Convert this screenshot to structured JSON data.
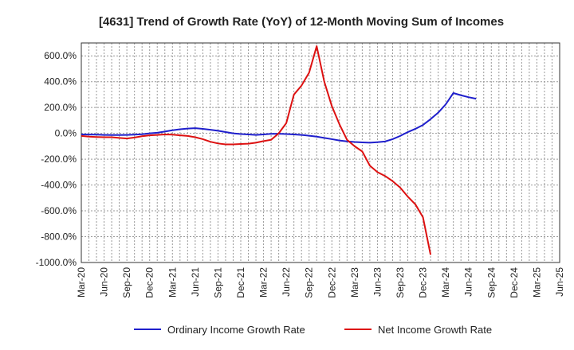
{
  "chart_data": {
    "type": "line",
    "title": "[4631]  Trend of Growth Rate (YoY) of 12-Month Moving Sum of Incomes",
    "xlabel": "",
    "ylabel": "",
    "ylim": [
      -1000,
      700
    ],
    "y_ticks": [
      600,
      400,
      200,
      0,
      -200,
      -400,
      -600,
      -800,
      -1000
    ],
    "y_tick_labels": [
      "600.0%",
      "400.0%",
      "200.0%",
      "0.0%",
      "-200.0%",
      "-400.0%",
      "-600.0%",
      "-800.0%",
      "-1000.0%"
    ],
    "x_tick_labels": [
      "Mar-20",
      "Jun-20",
      "Sep-20",
      "Dec-20",
      "Mar-21",
      "Jun-21",
      "Sep-21",
      "Dec-21",
      "Mar-22",
      "Jun-22",
      "Sep-22",
      "Dec-22",
      "Mar-23",
      "Jun-23",
      "Sep-23",
      "Dec-23",
      "Mar-24",
      "Jun-24",
      "Sep-24",
      "Dec-24",
      "Mar-25",
      "Jun-25"
    ],
    "grid": true,
    "legend_position": "bottom",
    "series": [
      {
        "name": "Ordinary Income Growth Rate",
        "color": "#1f1fcc",
        "values": [
          -8,
          -9,
          -10,
          -12,
          -13,
          -13,
          -12,
          -10,
          -7,
          0,
          5,
          14,
          24,
          32,
          37,
          40,
          35,
          28,
          20,
          10,
          0,
          -5,
          -8,
          -12,
          -8,
          -4,
          -3,
          -5,
          -8,
          -12,
          -18,
          -25,
          -35,
          -45,
          -55,
          -62,
          -67,
          -70,
          -72,
          -68,
          -63,
          -45,
          -20,
          10,
          35,
          65,
          110,
          160,
          225,
          312,
          295,
          280,
          268
        ]
      },
      {
        "name": "Net Income Growth Rate",
        "color": "#dd1111",
        "values": [
          -20,
          -25,
          -28,
          -30,
          -30,
          -35,
          -40,
          -32,
          -22,
          -15,
          -12,
          -8,
          -10,
          -15,
          -20,
          -30,
          -45,
          -65,
          -78,
          -85,
          -85,
          -82,
          -80,
          -72,
          -60,
          -50,
          0,
          80,
          300,
          370,
          470,
          675,
          400,
          210,
          70,
          -50,
          -100,
          -140,
          -250,
          -300,
          -330,
          -370,
          -420,
          -490,
          -550,
          -650,
          -940
        ]
      }
    ]
  }
}
